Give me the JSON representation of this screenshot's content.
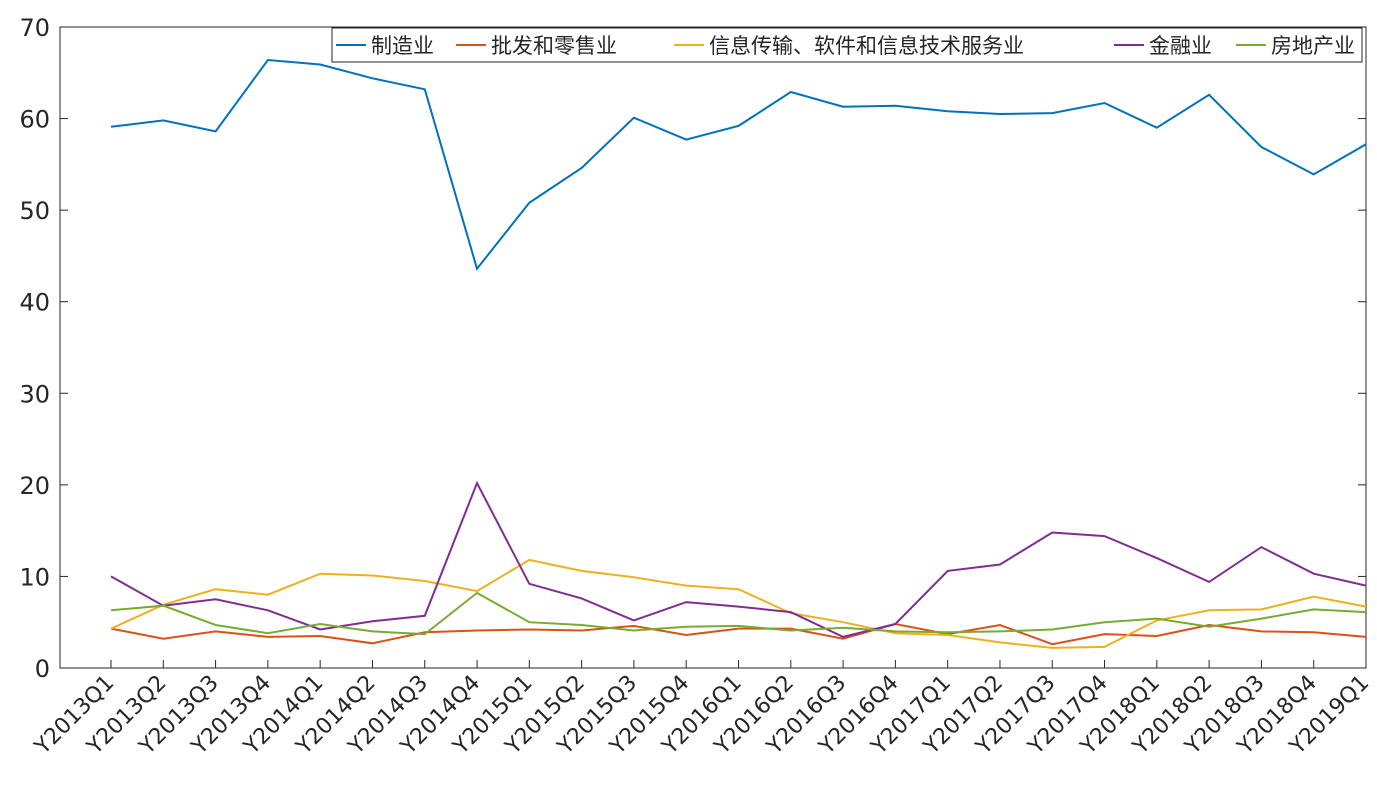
{
  "chart_data": {
    "type": "line",
    "title": "",
    "xlabel": "",
    "ylabel": "",
    "ylim": [
      0,
      70
    ],
    "yticks": [
      0,
      10,
      20,
      30,
      40,
      50,
      60,
      70
    ],
    "grid": false,
    "legend_position": "top-right",
    "categories": [
      "Y2013Q1",
      "Y2013Q2",
      "Y2013Q3",
      "Y2013Q4",
      "Y2014Q1",
      "Y2014Q2",
      "Y2014Q3",
      "Y2014Q4",
      "Y2015Q1",
      "Y2015Q2",
      "Y2015Q3",
      "Y2015Q4",
      "Y2016Q1",
      "Y2016Q2",
      "Y2016Q3",
      "Y2016Q4",
      "Y2017Q1",
      "Y2017Q2",
      "Y2017Q3",
      "Y2017Q4",
      "Y2018Q1",
      "Y2018Q2",
      "Y2018Q3",
      "Y2018Q4",
      "Y2019Q1"
    ],
    "series": [
      {
        "name": "制造业",
        "color": "#0072BD",
        "values": [
          59.1,
          59.8,
          58.6,
          66.4,
          65.9,
          64.4,
          63.2,
          43.6,
          50.8,
          54.6,
          60.1,
          57.7,
          59.2,
          62.9,
          61.3,
          61.4,
          60.8,
          60.5,
          60.6,
          61.7,
          59.0,
          62.6,
          56.9,
          53.9,
          57.2
        ]
      },
      {
        "name": "批发和零售业",
        "color": "#D95319",
        "values": [
          4.3,
          3.2,
          4.0,
          3.4,
          3.5,
          2.7,
          3.9,
          4.1,
          4.2,
          4.1,
          4.6,
          3.6,
          4.3,
          4.3,
          3.2,
          4.8,
          3.7,
          4.7,
          2.6,
          3.7,
          3.5,
          4.7,
          4.0,
          3.9,
          3.4
        ]
      },
      {
        "name": "信息传输、软件和信息技术服务业",
        "color": "#EDB120",
        "values": [
          4.3,
          6.9,
          8.6,
          8.0,
          10.3,
          10.1,
          9.5,
          8.4,
          11.8,
          10.6,
          9.9,
          9.0,
          8.6,
          6.0,
          5.0,
          3.8,
          3.6,
          2.8,
          2.2,
          2.3,
          5.2,
          6.3,
          6.4,
          7.8,
          6.7
        ]
      },
      {
        "name": "金融业",
        "color": "#7E2F8E",
        "values": [
          10.0,
          6.8,
          7.5,
          6.3,
          4.2,
          5.1,
          5.7,
          20.2,
          9.2,
          7.6,
          5.2,
          7.2,
          6.7,
          6.1,
          3.4,
          4.8,
          10.6,
          11.3,
          14.8,
          14.4,
          12.0,
          9.4,
          13.2,
          10.3,
          9.0
        ]
      },
      {
        "name": "房地产业",
        "color": "#77AC30",
        "values": [
          6.3,
          6.8,
          4.7,
          3.8,
          4.8,
          4.0,
          3.7,
          8.2,
          5.0,
          4.7,
          4.1,
          4.5,
          4.6,
          4.1,
          4.4,
          4.0,
          3.9,
          4.0,
          4.2,
          5.0,
          5.4,
          4.5,
          5.4,
          6.4,
          6.1
        ]
      }
    ]
  }
}
